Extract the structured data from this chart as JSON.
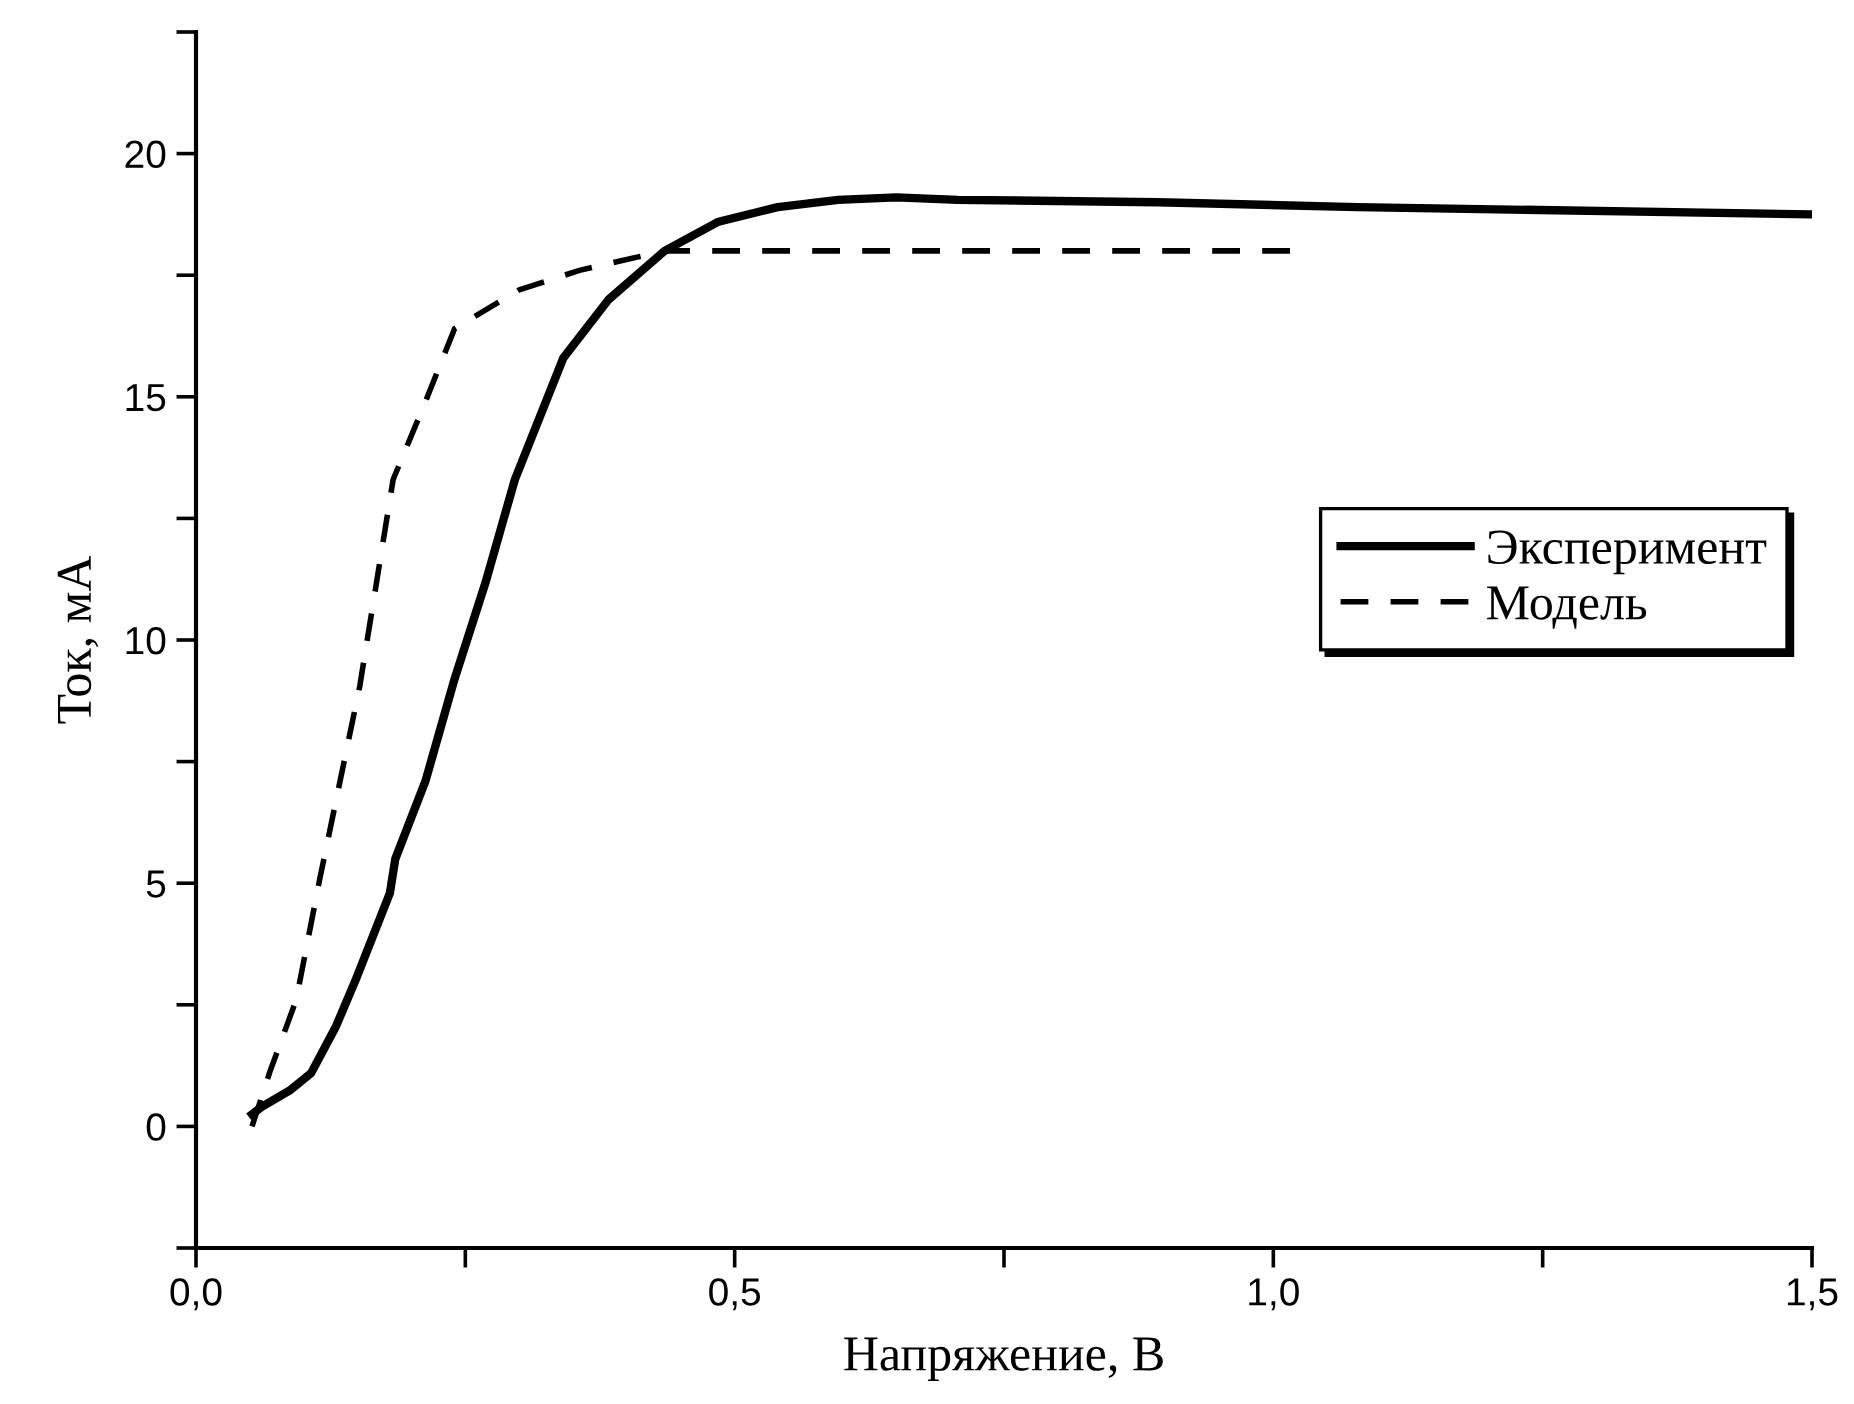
{
  "chart_data": {
    "type": "line",
    "xlabel": "Напряжение, В",
    "ylabel": "Ток, мА",
    "xlim": [
      0,
      1.5
    ],
    "ylim": [
      -2.5,
      22.5
    ],
    "xticks": [
      {
        "value": 0,
        "label": "0,0"
      },
      {
        "value": 0.25,
        "label": null
      },
      {
        "value": 0.5,
        "label": "0,5"
      },
      {
        "value": 0.75,
        "label": null
      },
      {
        "value": 1.0,
        "label": "1,0"
      },
      {
        "value": 1.25,
        "label": null
      },
      {
        "value": 1.5,
        "label": "1,5"
      }
    ],
    "yticks": [
      {
        "value": -2.5,
        "label": null
      },
      0,
      {
        "value": 2.5,
        "label": null
      },
      5,
      {
        "value": 7.5,
        "label": null
      },
      10,
      {
        "value": 12.5,
        "label": null
      },
      15,
      {
        "value": 17.5,
        "label": null
      },
      20,
      {
        "value": 22.5,
        "label": null
      }
    ],
    "grid": false,
    "legend": "right",
    "marker": "none",
    "series": [
      {
        "name": "Эксперимент",
        "color": "#000000",
        "line_style": "solid",
        "x": [
          0.052,
          0.061,
          0.087,
          0.107,
          0.13,
          0.148,
          0.18,
          0.185,
          0.213,
          0.24,
          0.269,
          0.296,
          0.341,
          0.383,
          0.435,
          0.485,
          0.54,
          0.596,
          0.65,
          0.707,
          0.893,
          1.078,
          1.5
        ],
        "values": [
          0.25,
          0.4,
          0.74,
          1.1,
          2.06,
          3.0,
          4.8,
          5.5,
          7.1,
          9.2,
          11.2,
          13.3,
          15.8,
          17.0,
          18.0,
          18.6,
          18.9,
          19.05,
          19.1,
          19.05,
          19.0,
          18.9,
          18.75
        ]
      },
      {
        "name": "Модель",
        "color": "#000000",
        "line_style": "dashed",
        "x": [
          0.052,
          0.069,
          0.093,
          0.115,
          0.152,
          0.183,
          0.213,
          0.24,
          0.3,
          0.356,
          0.435,
          1.017
        ],
        "values": [
          0,
          1.15,
          2.6,
          5.1,
          9.05,
          13.3,
          14.9,
          16.4,
          17.2,
          17.6,
          18.0,
          18.0
        ]
      }
    ]
  }
}
